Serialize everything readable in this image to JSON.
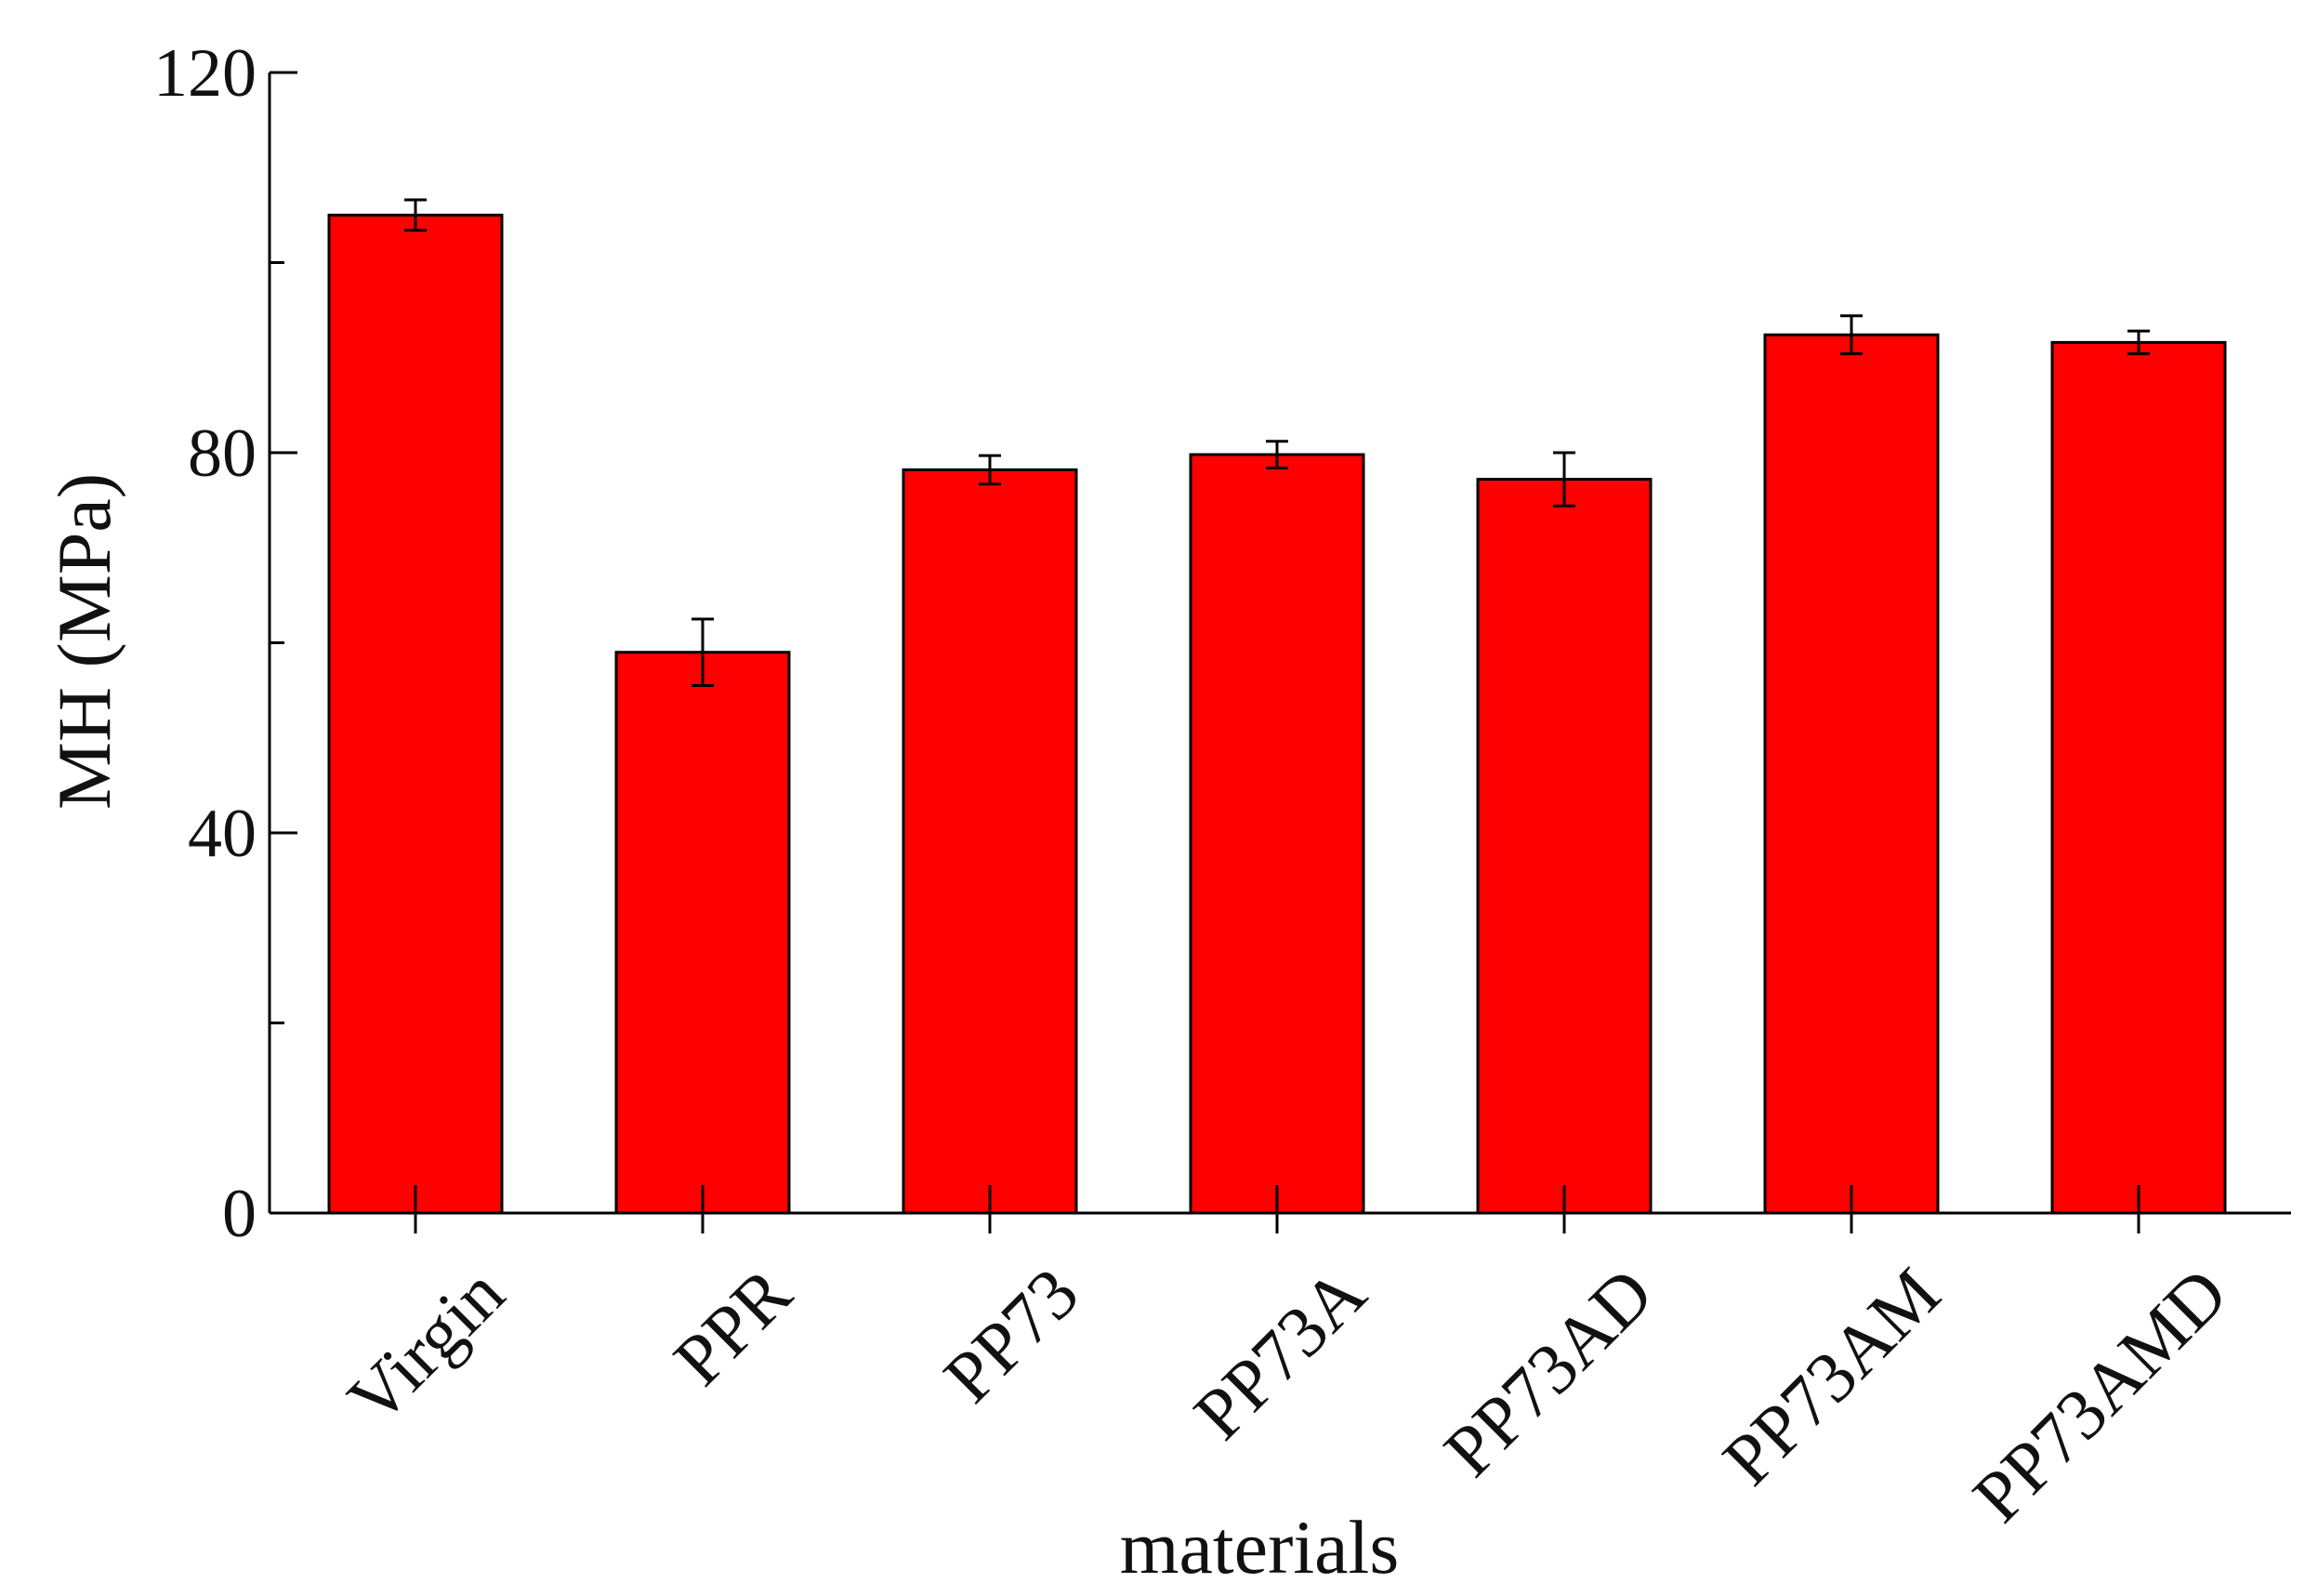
{
  "chart_data": {
    "type": "bar",
    "title": "",
    "xlabel": "materials",
    "ylabel": "MH (MPa)",
    "ylim": [
      0,
      120
    ],
    "y_ticks": [
      0,
      40,
      80,
      120
    ],
    "y_minor_ticks": [
      20,
      60,
      100
    ],
    "grid": false,
    "legend": "none",
    "categories": [
      "Virgin",
      "PPR",
      "PP73",
      "PP73A",
      "PP73AD",
      "PP73AM",
      "PP73AMD"
    ],
    "values": [
      105.0,
      59.0,
      78.2,
      79.8,
      77.2,
      92.4,
      91.6
    ],
    "errors": [
      1.6,
      3.5,
      1.5,
      1.4,
      2.8,
      2.0,
      1.2
    ],
    "bar_color": "#ff0000",
    "bar_edge_color": "#000000"
  }
}
